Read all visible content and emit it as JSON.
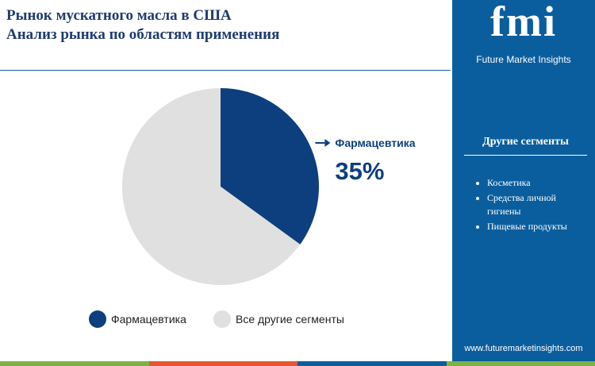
{
  "chart_data": {
    "type": "pie",
    "title": [
      "Рынок мускатного масла в США",
      "Анализ рынка по областям применения"
    ],
    "categories": [
      "Фармацевтика",
      "Все другие сегменты"
    ],
    "values": [
      35,
      65
    ],
    "value_labels": [
      "35%",
      null
    ],
    "colors": [
      "#0d3f7f",
      "#e0e0e0"
    ]
  },
  "sidebar": {
    "logo": "fmi",
    "brand": "Future Market Insights",
    "heading": "Другие сегменты",
    "items": [
      "Косметика",
      "Средства личной гигиены",
      "Пищевые продукты"
    ],
    "url": "www.futuremarketinsights.com"
  }
}
